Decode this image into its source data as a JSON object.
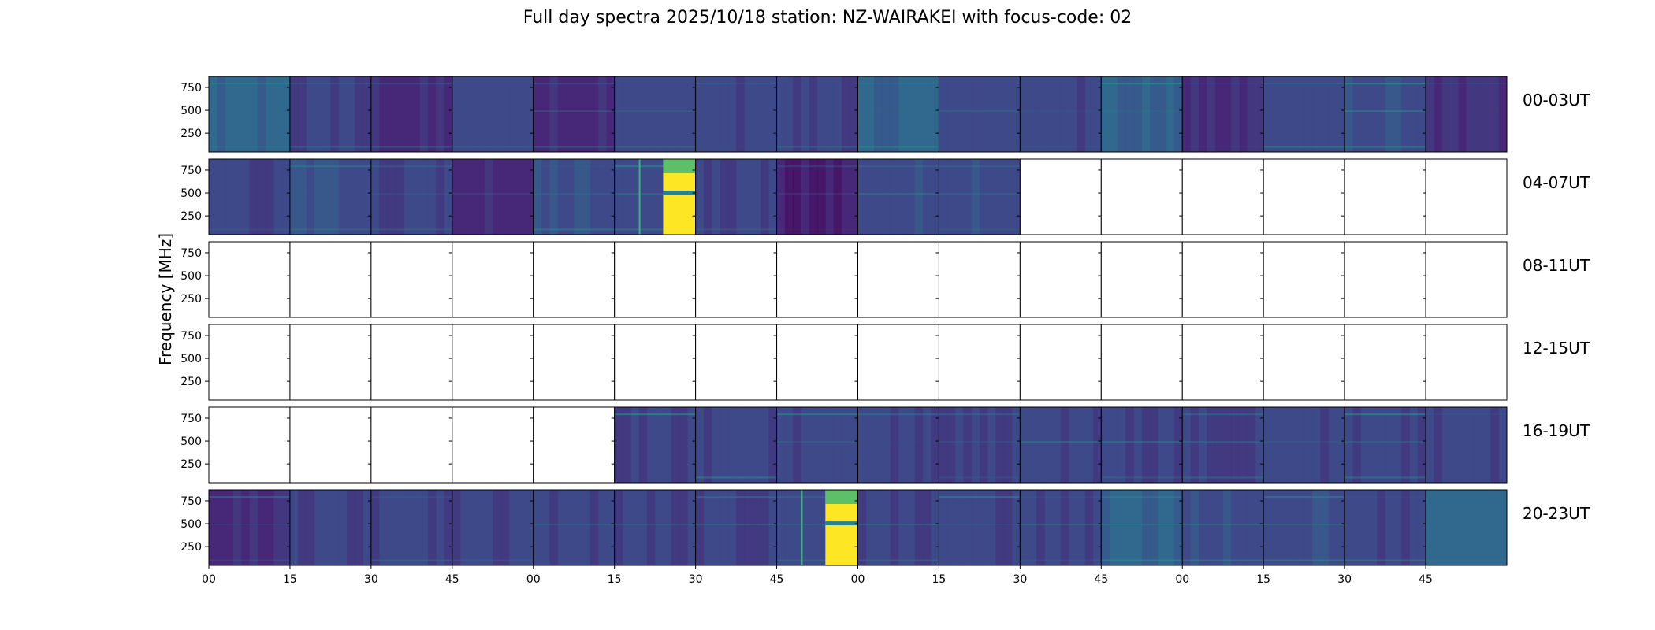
{
  "chart_data": {
    "type": "heatmap",
    "title": "Full day spectra 2025/10/18 station: NZ-WAIRAKEI with focus-code: 02",
    "ylabel": "Frequency [MHz]",
    "xlabel": "",
    "y_ticks": [
      250,
      500,
      750
    ],
    "y_tick_labels": [
      "250",
      "500",
      "750"
    ],
    "ylim": [
      45,
      870
    ],
    "x_tick_labels": [
      "00",
      "15",
      "30",
      "45",
      "00",
      "15",
      "30",
      "45",
      "00",
      "15",
      "30",
      "45",
      "00",
      "15",
      "30",
      "45"
    ],
    "segments_per_row": 16,
    "segment_minutes": 15,
    "colormap": [
      "#440154",
      "#482878",
      "#3e4989",
      "#31688e",
      "#26828e",
      "#1f9e89",
      "#35b779",
      "#6ece58",
      "#b5de2b",
      "#fde725"
    ],
    "rows": [
      {
        "label": "00-03UT",
        "segments": [
          {
            "status": "data",
            "level": 0.3
          },
          {
            "status": "data",
            "level": 0.18
          },
          {
            "status": "data",
            "level": 0.16
          },
          {
            "status": "data",
            "level": 0.22
          },
          {
            "status": "data",
            "level": 0.16
          },
          {
            "status": "data",
            "level": 0.22
          },
          {
            "status": "data",
            "level": 0.2
          },
          {
            "status": "data",
            "level": 0.18
          },
          {
            "status": "data",
            "level": 0.3
          },
          {
            "status": "data",
            "level": 0.24
          },
          {
            "status": "data",
            "level": 0.22
          },
          {
            "status": "data",
            "level": 0.28
          },
          {
            "status": "data",
            "level": 0.16
          },
          {
            "status": "data",
            "level": 0.22
          },
          {
            "status": "data",
            "level": 0.24
          },
          {
            "status": "data",
            "level": 0.16
          }
        ]
      },
      {
        "label": "04-07UT",
        "segments": [
          {
            "status": "data",
            "level": 0.18
          },
          {
            "status": "data",
            "level": 0.26
          },
          {
            "status": "data",
            "level": 0.18
          },
          {
            "status": "data",
            "level": 0.12
          },
          {
            "status": "data",
            "level": 0.26
          },
          {
            "status": "burst",
            "level": 0.2
          },
          {
            "status": "data",
            "level": 0.18
          },
          {
            "status": "data",
            "level": 0.06
          },
          {
            "status": "data",
            "level": 0.26
          },
          {
            "status": "data",
            "level": 0.24
          },
          {
            "status": "empty"
          },
          {
            "status": "empty"
          },
          {
            "status": "empty"
          },
          {
            "status": "empty"
          },
          {
            "status": "empty"
          },
          {
            "status": "empty"
          }
        ]
      },
      {
        "label": "08-11UT",
        "segments": [
          {
            "status": "empty"
          },
          {
            "status": "empty"
          },
          {
            "status": "empty"
          },
          {
            "status": "empty"
          },
          {
            "status": "empty"
          },
          {
            "status": "empty"
          },
          {
            "status": "empty"
          },
          {
            "status": "empty"
          },
          {
            "status": "empty"
          },
          {
            "status": "empty"
          },
          {
            "status": "empty"
          },
          {
            "status": "empty"
          },
          {
            "status": "empty"
          },
          {
            "status": "empty"
          },
          {
            "status": "empty"
          },
          {
            "status": "empty"
          }
        ]
      },
      {
        "label": "12-15UT",
        "segments": [
          {
            "status": "empty"
          },
          {
            "status": "empty"
          },
          {
            "status": "empty"
          },
          {
            "status": "empty"
          },
          {
            "status": "empty"
          },
          {
            "status": "empty"
          },
          {
            "status": "empty"
          },
          {
            "status": "empty"
          },
          {
            "status": "empty"
          },
          {
            "status": "empty"
          },
          {
            "status": "empty"
          },
          {
            "status": "empty"
          },
          {
            "status": "empty"
          },
          {
            "status": "empty"
          },
          {
            "status": "empty"
          },
          {
            "status": "empty"
          }
        ]
      },
      {
        "label": "16-19UT",
        "segments": [
          {
            "status": "empty"
          },
          {
            "status": "empty"
          },
          {
            "status": "empty"
          },
          {
            "status": "empty"
          },
          {
            "status": "empty"
          },
          {
            "status": "data",
            "level": 0.2
          },
          {
            "status": "data",
            "level": 0.2
          },
          {
            "status": "data",
            "level": 0.2
          },
          {
            "status": "data",
            "level": 0.18
          },
          {
            "status": "data",
            "level": 0.18
          },
          {
            "status": "data",
            "level": 0.2
          },
          {
            "status": "data",
            "level": 0.2
          },
          {
            "status": "data",
            "level": 0.18
          },
          {
            "status": "data",
            "level": 0.2
          },
          {
            "status": "data",
            "level": 0.2
          },
          {
            "status": "data",
            "level": 0.2
          }
        ]
      },
      {
        "label": "20-23UT",
        "segments": [
          {
            "status": "data",
            "level": 0.16
          },
          {
            "status": "data",
            "level": 0.18
          },
          {
            "status": "data",
            "level": 0.18
          },
          {
            "status": "data",
            "level": 0.18
          },
          {
            "status": "data",
            "level": 0.18
          },
          {
            "status": "data",
            "level": 0.18
          },
          {
            "status": "data",
            "level": 0.18
          },
          {
            "status": "burst",
            "level": 0.18
          },
          {
            "status": "data",
            "level": 0.18
          },
          {
            "status": "data",
            "level": 0.2
          },
          {
            "status": "data",
            "level": 0.2
          },
          {
            "status": "data",
            "level": 0.3
          },
          {
            "status": "data",
            "level": 0.24
          },
          {
            "status": "data",
            "level": 0.26
          },
          {
            "status": "data",
            "level": 0.22
          },
          {
            "status": "data",
            "level": 0.34
          }
        ]
      }
    ]
  }
}
